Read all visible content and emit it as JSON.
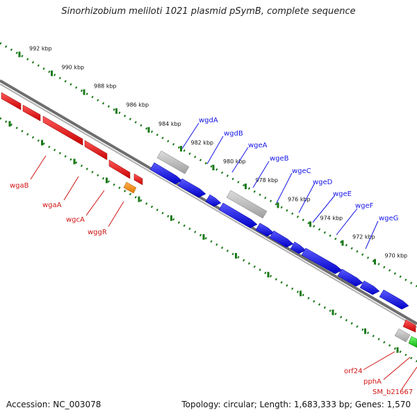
{
  "title": "Sinorhizobium meliloti 1021 plasmid pSymB, complete sequence",
  "accession": "Accession: NC_003078",
  "topology": "Topology: circular; Length: 1,683,333 bp; Genes: 1,570",
  "colors": {
    "forward_gene": "#1414e6",
    "reverse_gene": "#e01414",
    "rna_gene": "#f08c14",
    "other_feature": "#b4b4b4",
    "extra_gene": "#22c022",
    "scale_dots": "#1a7a1a",
    "backbone": "#7a7a7a",
    "label_blue": "#1414e6",
    "label_red": "#d01414"
  },
  "scale_labels": [
    "992 kbp",
    "990 kbp",
    "988 kbp",
    "986 kbp",
    "984 kbp",
    "982 kbp",
    "980 kbp",
    "978 kbp",
    "976 kbp",
    "974 kbp",
    "972 kbp",
    "970 kbp"
  ],
  "forward_gene_labels": [
    "wgdA",
    "wgdB",
    "wgeA",
    "wgeB",
    "wgeC",
    "wgeD",
    "wgeE",
    "wgeF",
    "wgeG"
  ],
  "reverse_gene_labels": [
    "wgaB",
    "wgaA",
    "wgcA",
    "wggR",
    "orf24",
    "pphA",
    "SM_b21667"
  ]
}
